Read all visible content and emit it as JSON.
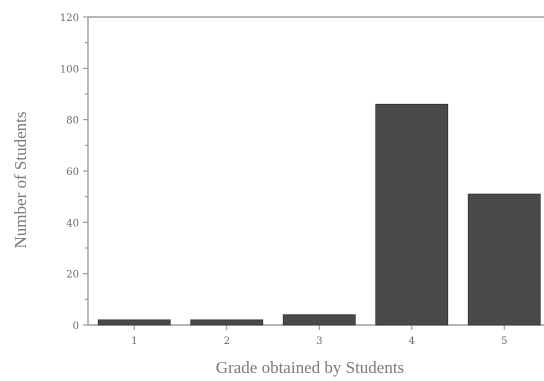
{
  "chart_data": {
    "type": "bar",
    "title": "",
    "xlabel": "Grade obtained by Students",
    "ylabel": "Number of Students",
    "categories": [
      "1",
      "2",
      "3",
      "4",
      "5"
    ],
    "values": [
      2,
      2,
      4,
      86,
      51
    ],
    "ylim": [
      0,
      120
    ],
    "yticks": [
      "0",
      "20",
      "40",
      "60",
      "80",
      "100",
      "120"
    ],
    "grid": false,
    "legend": "none",
    "bar_color": "#4a4a4a",
    "axis_color": "#8a8a8a"
  }
}
